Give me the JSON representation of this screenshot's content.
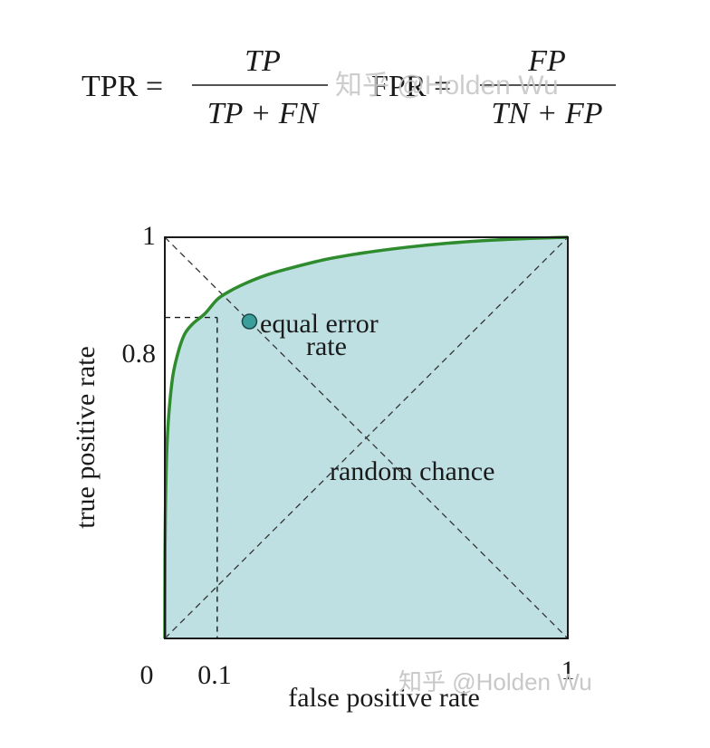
{
  "formulas": {
    "tpr": {
      "lhs": "TPR =",
      "numerator": "TP",
      "denominator": "TP + FN"
    },
    "fpr": {
      "lhs": "FPR =",
      "numerator": "FP",
      "denominator": "TN + FP"
    }
  },
  "watermark": "知乎 @Holden Wu",
  "chart_data": {
    "type": "line",
    "title": "",
    "xlabel": "false positive rate",
    "ylabel": "true positive rate",
    "xlim": [
      0,
      1
    ],
    "ylim": [
      0,
      1
    ],
    "x_ticks": [
      "0",
      "0.1",
      "1"
    ],
    "y_ticks": [
      "0.8",
      "1"
    ],
    "grid": false,
    "series": [
      {
        "type": "roc-curve",
        "color": "#2e8b2e",
        "fill": "#bfe0e3",
        "x": [
          0,
          0.0005,
          0.002,
          0.005,
          0.01,
          0.02,
          0.035,
          0.05,
          0.07,
          0.1,
          0.13,
          0.16,
          0.2,
          0.25,
          0.3,
          0.4,
          0.5,
          0.6,
          0.7,
          0.8,
          0.9,
          1.0
        ],
        "y": [
          0,
          0.22,
          0.35,
          0.47,
          0.56,
          0.655,
          0.72,
          0.76,
          0.785,
          0.81,
          0.845,
          0.865,
          0.885,
          0.905,
          0.92,
          0.945,
          0.962,
          0.975,
          0.985,
          0.992,
          0.997,
          1.0
        ]
      },
      {
        "type": "reference-diagonal",
        "color": "#333333",
        "x": [
          0,
          1
        ],
        "y": [
          0,
          1
        ]
      },
      {
        "type": "eer-line",
        "color": "#333333",
        "x": [
          0,
          1
        ],
        "y": [
          1,
          0
        ]
      }
    ],
    "guides": [
      {
        "x": 0.13,
        "y": 0.8
      }
    ],
    "annotations": [
      {
        "text_line1": "equal error",
        "text_line2": "rate",
        "point": {
          "x": 0.21,
          "y": 0.79
        },
        "marker_color": "#3a9e9a"
      },
      {
        "text": "random chance"
      }
    ]
  }
}
